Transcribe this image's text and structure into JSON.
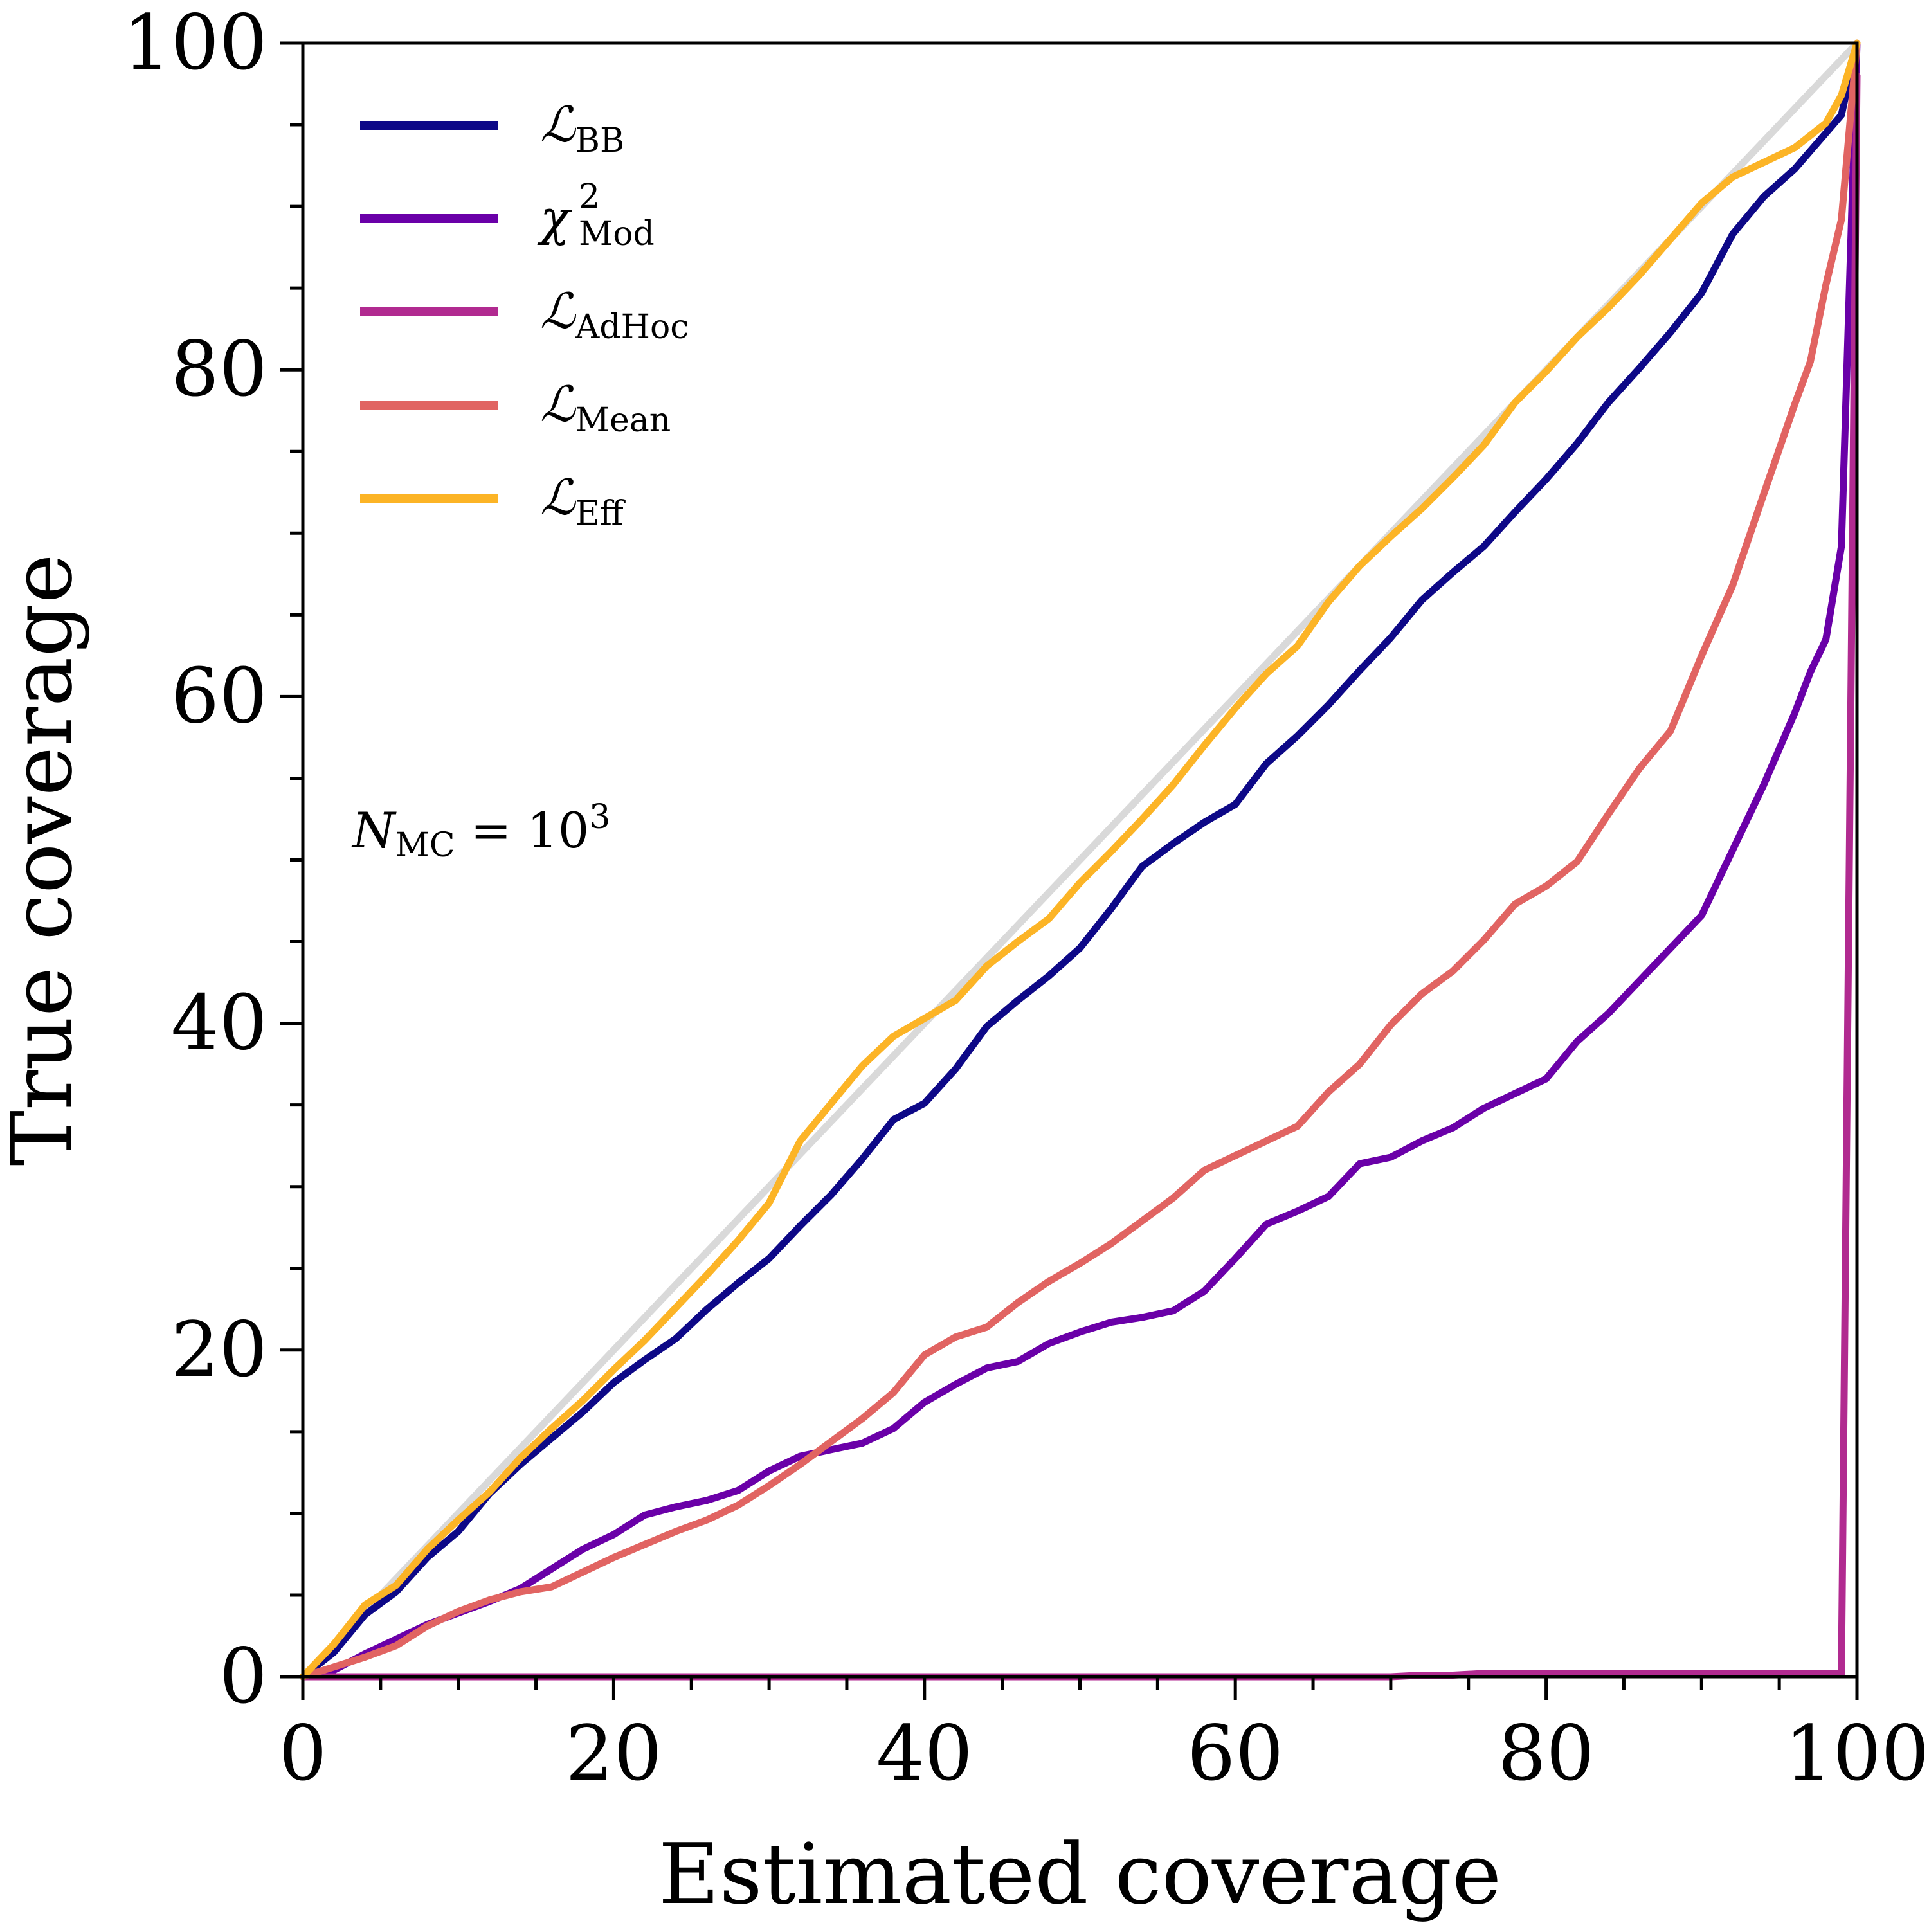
{
  "chart_data": {
    "type": "line",
    "title": "",
    "xlabel": "Estimated coverage",
    "ylabel": "True coverage",
    "xlim": [
      0,
      100
    ],
    "ylim": [
      0,
      100
    ],
    "x_ticks": [
      "0",
      "20",
      "40",
      "60",
      "80",
      "100"
    ],
    "y_ticks": [
      "0",
      "20",
      "40",
      "60",
      "80",
      "100"
    ],
    "grid": false,
    "legend_position": "top-left",
    "reference_line": {
      "x": [
        0,
        100
      ],
      "y": [
        0,
        100
      ],
      "color": "#d9d9d9"
    },
    "annotation": {
      "main": "N",
      "subscript": "MC",
      "rest": " = 10",
      "superscript": "3"
    },
    "series": [
      {
        "name": "ℒ_BB",
        "legend_main": "ℒ",
        "legend_sub": "BB",
        "legend_sup": "",
        "color": "#0d0887",
        "x": [
          0,
          2,
          4,
          6,
          8,
          10,
          12,
          14,
          16,
          18,
          20,
          22,
          24,
          26,
          28,
          30,
          32,
          34,
          36,
          38,
          40,
          42,
          44,
          46,
          48,
          50,
          52,
          54,
          56,
          58,
          60,
          62,
          64,
          66,
          68,
          70,
          72,
          74,
          76,
          78,
          80,
          82,
          84,
          86,
          88,
          90,
          92,
          94,
          96,
          98,
          99,
          100
        ],
        "y": [
          0,
          1.5,
          3.8,
          5.2,
          7.3,
          8.9,
          11.2,
          13.0,
          14.6,
          16.2,
          18.0,
          19.4,
          20.7,
          22.5,
          24.1,
          25.6,
          27.6,
          29.5,
          31.7,
          34.1,
          35.1,
          37.2,
          39.8,
          41.4,
          42.9,
          44.6,
          47.0,
          49.6,
          51.0,
          52.3,
          53.4,
          55.9,
          57.6,
          59.5,
          61.6,
          63.6,
          65.9,
          67.6,
          69.2,
          71.3,
          73.3,
          75.5,
          78.0,
          80.1,
          82.3,
          84.7,
          88.3,
          90.6,
          92.3,
          94.5,
          95.6,
          100
        ]
      },
      {
        "name": "χ²_Mod",
        "legend_main": "χ",
        "legend_sub": "Mod",
        "legend_sup": "2",
        "color": "#6a00a8",
        "x": [
          0,
          2,
          4,
          6,
          8,
          10,
          12,
          14,
          16,
          18,
          20,
          22,
          24,
          26,
          28,
          30,
          32,
          34,
          36,
          38,
          40,
          42,
          44,
          46,
          48,
          50,
          52,
          54,
          56,
          58,
          60,
          62,
          64,
          66,
          68,
          70,
          72,
          74,
          76,
          78,
          80,
          82,
          84,
          86,
          88,
          90,
          92,
          94,
          96,
          97,
          98,
          99,
          100
        ],
        "y": [
          0,
          0.4,
          1.4,
          2.3,
          3.2,
          3.9,
          4.6,
          5.4,
          6.6,
          7.8,
          8.7,
          9.9,
          10.4,
          10.8,
          11.4,
          12.6,
          13.5,
          13.9,
          14.3,
          15.2,
          16.8,
          17.9,
          18.9,
          19.3,
          20.4,
          21.1,
          21.7,
          22.0,
          22.4,
          23.6,
          25.6,
          27.7,
          28.5,
          29.4,
          31.4,
          31.8,
          32.8,
          33.6,
          34.8,
          35.7,
          36.6,
          38.9,
          40.6,
          42.6,
          44.6,
          46.6,
          50.6,
          54.6,
          59.0,
          61.5,
          63.5,
          69.2,
          100
        ]
      },
      {
        "name": "ℒ_AdHoc",
        "legend_main": "ℒ",
        "legend_sub": "AdHoc",
        "legend_sup": "",
        "color": "#b12a90",
        "x": [
          0,
          20,
          40,
          60,
          70,
          72,
          74,
          76,
          80,
          90,
          98,
          99,
          100
        ],
        "y": [
          0,
          0,
          0,
          0,
          0,
          0.1,
          0.1,
          0.2,
          0.2,
          0.2,
          0.2,
          0.2,
          98
        ]
      },
      {
        "name": "ℒ_Mean",
        "legend_main": "ℒ",
        "legend_sub": "Mean",
        "legend_sup": "",
        "color": "#e16462",
        "x": [
          0,
          2,
          4,
          6,
          8,
          10,
          12,
          14,
          16,
          18,
          20,
          22,
          24,
          26,
          28,
          30,
          32,
          34,
          36,
          38,
          40,
          42,
          44,
          46,
          48,
          50,
          52,
          54,
          56,
          58,
          60,
          62,
          64,
          66,
          68,
          70,
          72,
          74,
          76,
          78,
          80,
          82,
          84,
          86,
          88,
          90,
          92,
          94,
          96,
          97,
          98,
          99,
          100
        ],
        "y": [
          0,
          0.6,
          1.2,
          1.9,
          3.1,
          4.0,
          4.7,
          5.2,
          5.5,
          6.4,
          7.3,
          8.1,
          8.9,
          9.6,
          10.5,
          11.7,
          13.0,
          14.4,
          15.8,
          17.4,
          19.7,
          20.8,
          21.4,
          22.9,
          24.2,
          25.3,
          26.5,
          27.9,
          29.3,
          31.0,
          31.9,
          32.8,
          33.7,
          35.8,
          37.5,
          39.9,
          41.8,
          43.2,
          45.1,
          47.3,
          48.4,
          49.9,
          52.8,
          55.6,
          57.9,
          62.5,
          66.8,
          72.4,
          77.9,
          80.5,
          85.2,
          89.2,
          100
        ]
      },
      {
        "name": "ℒ_Eff",
        "legend_main": "ℒ",
        "legend_sub": "Eff",
        "legend_sup": "",
        "color": "#fcb426",
        "x": [
          0,
          2,
          4,
          6,
          8,
          10,
          12,
          14,
          16,
          18,
          20,
          22,
          24,
          26,
          28,
          30,
          32,
          34,
          36,
          38,
          40,
          42,
          44,
          46,
          48,
          50,
          52,
          54,
          56,
          58,
          60,
          62,
          64,
          66,
          68,
          70,
          72,
          74,
          76,
          78,
          80,
          82,
          84,
          86,
          88,
          90,
          92,
          94,
          96,
          98,
          99,
          100
        ],
        "y": [
          0,
          2.0,
          4.4,
          5.6,
          7.8,
          9.6,
          11.3,
          13.4,
          15.2,
          16.9,
          18.8,
          20.6,
          22.6,
          24.6,
          26.7,
          29.0,
          32.8,
          35.1,
          37.4,
          39.2,
          40.3,
          41.4,
          43.5,
          45.0,
          46.4,
          48.6,
          50.5,
          52.5,
          54.6,
          57.0,
          59.3,
          61.4,
          63.1,
          65.8,
          68.0,
          69.8,
          71.5,
          73.4,
          75.4,
          78.0,
          79.9,
          82.0,
          83.8,
          85.8,
          88.0,
          90.2,
          91.8,
          92.7,
          93.6,
          95.1,
          96.8,
          100
        ]
      }
    ]
  }
}
